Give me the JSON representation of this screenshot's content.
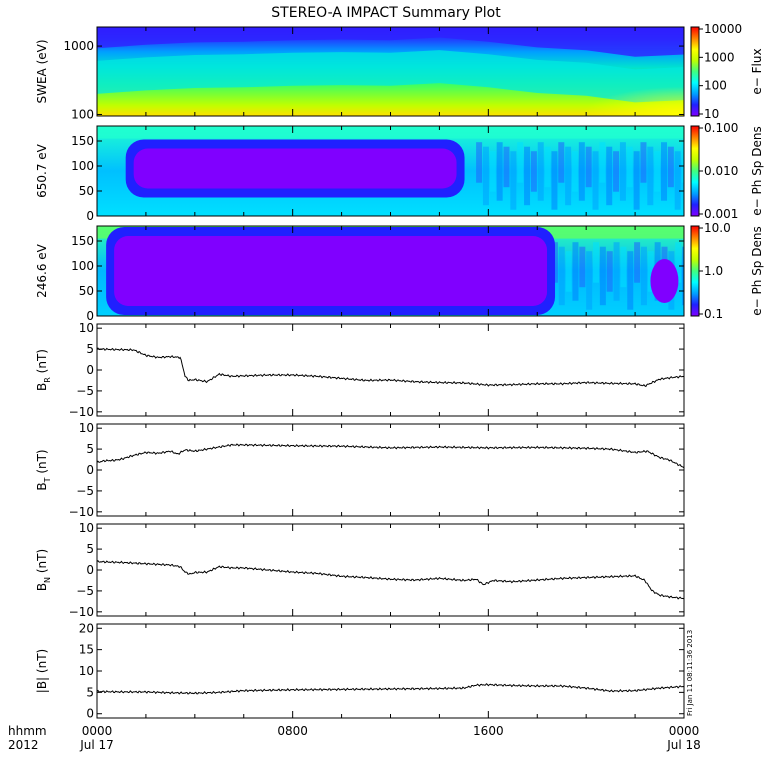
{
  "title": "STEREO-A IMPACT Summary Plot",
  "stamp": "Fri Jan 11 08:11:36 2013",
  "time_axis": {
    "corner_top": "hhmm",
    "corner_bottom": "2012",
    "ticks": [
      {
        "hour": 0,
        "label": "0000",
        "sub": "Jul 17"
      },
      {
        "hour": 8,
        "label": "0800",
        "sub": ""
      },
      {
        "hour": 16,
        "label": "1600",
        "sub": ""
      },
      {
        "hour": 24,
        "label": "0000",
        "sub": "Jul 18"
      }
    ],
    "minor_ticks_hours": [
      2,
      4,
      6,
      10,
      12,
      14,
      18,
      20,
      22
    ],
    "range_hours": [
      0,
      24
    ]
  },
  "colors": {
    "spectrogram_scale": [
      "#8000ff",
      "#2020ff",
      "#00a0ff",
      "#00ffff",
      "#40ff80",
      "#c0ff00",
      "#ffff00",
      "#ff8000",
      "#ff0000"
    ]
  },
  "chart_data": [
    {
      "type": "heatmap",
      "id": "swea",
      "ylabel": "SWEA (eV)",
      "yscale": "log",
      "ylim": [
        95,
        1900
      ],
      "yticks": [
        100,
        1000
      ],
      "ytick_labels": [
        "100",
        "1000"
      ],
      "colorbar": {
        "label": "e− Flux",
        "scale": "log",
        "ticks": [
          10,
          100,
          1000,
          10000
        ],
        "tick_labels": [
          "10",
          "100",
          "1000",
          "10000"
        ]
      },
      "x_hours": [
        0,
        2,
        4,
        6,
        8,
        10,
        12,
        14,
        16,
        18,
        20,
        22,
        24
      ],
      "band_center_eV": [
        320,
        360,
        390,
        400,
        420,
        430,
        420,
        460,
        400,
        330,
        300,
        240,
        260
      ]
    },
    {
      "type": "heatmap",
      "id": "pad_650",
      "ylabel": "650.7 eV",
      "ylim": [
        0,
        180
      ],
      "yticks": [
        0,
        50,
        100,
        150
      ],
      "ytick_labels": [
        "0",
        "50",
        "100",
        "150"
      ],
      "colorbar": {
        "label": "e− Ph Sp Dens",
        "scale": "log",
        "ticks": [
          0.001,
          0.01,
          0.1
        ],
        "tick_labels": [
          "0.001",
          "0.010",
          "0.100"
        ]
      },
      "low_region": {
        "hours": [
          1.5,
          14.7
        ],
        "pitch_angle": [
          55,
          135
        ]
      }
    },
    {
      "type": "heatmap",
      "id": "pad_246",
      "ylabel": "246.6 eV",
      "ylim": [
        0,
        180
      ],
      "yticks": [
        0,
        50,
        100,
        150
      ],
      "ytick_labels": [
        "0",
        "50",
        "100",
        "150"
      ],
      "colorbar": {
        "label": "e− Ph Sp Dens",
        "scale": "log",
        "ticks": [
          0.1,
          1,
          10
        ],
        "tick_labels": [
          "0.1",
          "1.0",
          "10.0"
        ]
      },
      "low_region": {
        "hours": [
          0.7,
          18.4
        ],
        "pitch_angle": [
          20,
          160
        ]
      }
    },
    {
      "type": "line",
      "id": "br",
      "ylabel": "B",
      "ylabel_sub": "R",
      "ylabel_unit": " (nT)",
      "ylim": [
        -11,
        11
      ],
      "yticks": [
        -10,
        -5,
        0,
        5,
        10
      ],
      "ytick_labels": [
        "−10",
        "−5",
        "0",
        "5",
        "10"
      ],
      "x": [
        0,
        1.5,
        2.0,
        2.5,
        3.0,
        3.4,
        3.5,
        3.6,
        3.75,
        4.0,
        4.5,
        5.0,
        5.5,
        6.0,
        7,
        8,
        9,
        10,
        11,
        12,
        13,
        14,
        15,
        16,
        17,
        18,
        19,
        20,
        21,
        22,
        22.4,
        22.7,
        23,
        23.5,
        24
      ],
      "y": [
        5,
        4.8,
        3.5,
        3.0,
        3.2,
        3.0,
        1.0,
        -1.5,
        -2.5,
        -2.3,
        -2.8,
        -1.0,
        -1.5,
        -1.4,
        -1.2,
        -1.2,
        -1.5,
        -2.0,
        -2.5,
        -2.4,
        -2.8,
        -3.0,
        -3.1,
        -3.6,
        -3.5,
        -3.3,
        -3.3,
        -3.0,
        -3.2,
        -3.3,
        -3.8,
        -3.0,
        -2.2,
        -1.8,
        -1.5
      ]
    },
    {
      "type": "line",
      "id": "bt",
      "ylabel": "B",
      "ylabel_sub": "T",
      "ylabel_unit": " (nT)",
      "ylim": [
        -11,
        11
      ],
      "yticks": [
        -10,
        -5,
        0,
        5,
        10
      ],
      "ytick_labels": [
        "−10",
        "−5",
        "0",
        "5",
        "10"
      ],
      "x": [
        0,
        0.3,
        0.7,
        1.0,
        1.5,
        2.0,
        2.5,
        3.0,
        3.3,
        3.6,
        4.0,
        4.5,
        5.0,
        5.5,
        6.0,
        8,
        10,
        12,
        14,
        16,
        18,
        20,
        21,
        22,
        22.5,
        23,
        23.4,
        23.7,
        24
      ],
      "y": [
        1.8,
        2.2,
        2.3,
        2.6,
        3.5,
        4.2,
        4.0,
        4.5,
        3.8,
        4.8,
        4.5,
        5.0,
        5.5,
        6.0,
        6.0,
        5.8,
        5.7,
        5.3,
        5.5,
        5.3,
        5.4,
        5.2,
        5.0,
        4.2,
        4.5,
        3.0,
        2.4,
        1.5,
        0.6
      ]
    },
    {
      "type": "line",
      "id": "bn",
      "ylabel": "B",
      "ylabel_sub": "N",
      "ylabel_unit": " (nT)",
      "ylim": [
        -11,
        11
      ],
      "yticks": [
        -10,
        -5,
        0,
        5,
        10
      ],
      "ytick_labels": [
        "−10",
        "−5",
        "0",
        "5",
        "10"
      ],
      "x": [
        0,
        1,
        2,
        3,
        3.4,
        3.6,
        3.8,
        4.0,
        4.5,
        5.0,
        5.5,
        6,
        7,
        8,
        9,
        10,
        11,
        12,
        13,
        14,
        15,
        15.5,
        15.8,
        16.2,
        17,
        18,
        19,
        20,
        21,
        22,
        22.4,
        22.7,
        23,
        23.5,
        24
      ],
      "y": [
        2.0,
        1.8,
        1.5,
        1.2,
        0.8,
        -0.5,
        -1.0,
        -0.6,
        -0.5,
        0.8,
        0.5,
        0.5,
        0.0,
        -0.5,
        -0.8,
        -1.5,
        -1.8,
        -2.2,
        -2.4,
        -2.0,
        -2.5,
        -2.2,
        -3.5,
        -2.5,
        -2.8,
        -2.4,
        -2.0,
        -1.8,
        -1.6,
        -1.4,
        -2.5,
        -5.0,
        -6.0,
        -6.5,
        -6.8
      ]
    },
    {
      "type": "line",
      "id": "bmag",
      "ylabel": "|B| (nT)",
      "ylim": [
        -1,
        21
      ],
      "yticks": [
        0,
        5,
        10,
        15,
        20
      ],
      "ytick_labels": [
        "0",
        "5",
        "10",
        "15",
        "20"
      ],
      "x": [
        0,
        1,
        2,
        3,
        4,
        5,
        6,
        8,
        10,
        12,
        14,
        15,
        15.5,
        16,
        17,
        18,
        19,
        20,
        21,
        22,
        23,
        24
      ],
      "y": [
        5.2,
        5.1,
        5.1,
        4.9,
        4.8,
        5.0,
        5.4,
        5.6,
        5.7,
        5.8,
        5.9,
        6.0,
        6.7,
        6.8,
        6.6,
        6.5,
        6.5,
        6.0,
        5.3,
        5.4,
        6.0,
        6.4
      ]
    }
  ]
}
